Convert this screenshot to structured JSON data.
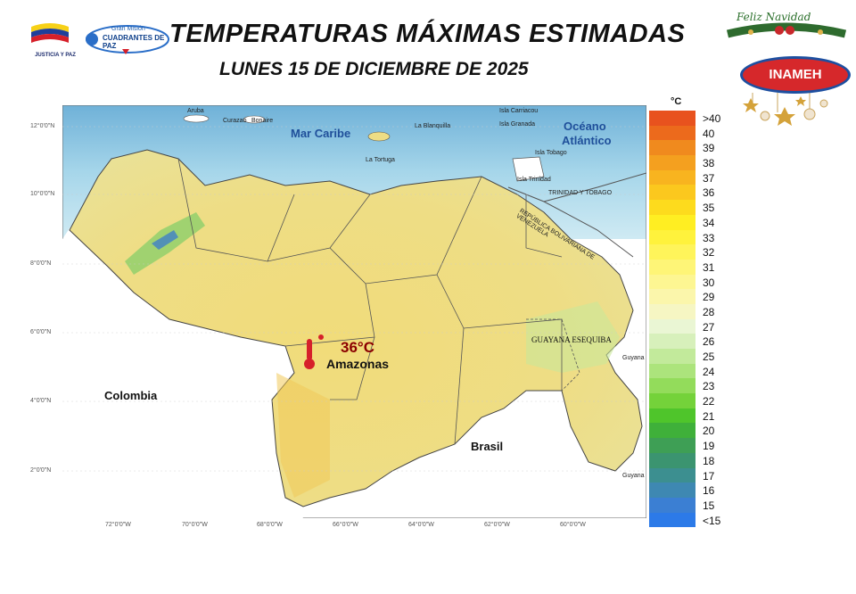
{
  "header": {
    "title": "TEMPERATURAS MÁXIMAS ESTIMADAS",
    "subtitle": "LUNES 15 DE DICIEMBRE DE 2025"
  },
  "logos": {
    "justicia_paz": "JUSTICIA Y PAZ",
    "gran_mision_line1": "Gran Misión",
    "gran_mision_line2": "CUADRANTES DE PAZ",
    "inameh": "INAMEH",
    "holiday": "Feliz Navidad"
  },
  "map": {
    "sea_labels": [
      "Mar Caribe",
      "Océano",
      "Atlántico"
    ],
    "country_labels": [
      "Colombia",
      "Brasil"
    ],
    "territory_label": "GUAYANA ESEQUIBA",
    "border_labels": [
      "TRINIDAD Y TOBAGO",
      "REPÚBLICA BOLIVARIANA DE VENEZUELA"
    ],
    "small_places": [
      "Aruba",
      "Curazao",
      "Bonaire",
      "Isla Carriacou",
      "Isla Granada",
      "Isla Tobago",
      "Isla Trinidad",
      "La Tortuga",
      "La Blanquilla",
      "Guyana",
      "Guyana"
    ],
    "highlight": {
      "temperature": "36°C",
      "state": "Amazonas"
    },
    "lat_ticks": [
      "12°0'0\"N",
      "10°0'0\"N",
      "8°0'0\"N",
      "6°0'0\"N",
      "4°0'0\"N",
      "2°0'0\"N"
    ],
    "lon_ticks": [
      "72°0'0\"W",
      "70°0'0\"W",
      "68°0'0\"W",
      "66°0'0\"W",
      "64°0'0\"W",
      "62°0'0\"W",
      "60°0'0\"W"
    ]
  },
  "legend": {
    "unit": "°C",
    "items": [
      {
        "label": ">40",
        "color": "#e8521e"
      },
      {
        "label": "40",
        "color": "#ec6a1c"
      },
      {
        "label": "39",
        "color": "#f08a1e"
      },
      {
        "label": "38",
        "color": "#f4a01f"
      },
      {
        "label": "37",
        "color": "#f8b41f"
      },
      {
        "label": "36",
        "color": "#fbc81e"
      },
      {
        "label": "35",
        "color": "#fddb1d"
      },
      {
        "label": "34",
        "color": "#ffee22"
      },
      {
        "label": "33",
        "color": "#fff23c"
      },
      {
        "label": "32",
        "color": "#fff45a"
      },
      {
        "label": "31",
        "color": "#fef577"
      },
      {
        "label": "30",
        "color": "#fdf692"
      },
      {
        "label": "29",
        "color": "#fbf6ab"
      },
      {
        "label": "28",
        "color": "#f6f6c3"
      },
      {
        "label": "27",
        "color": "#eaf6d4"
      },
      {
        "label": "26",
        "color": "#d7f0bb"
      },
      {
        "label": "25",
        "color": "#c2ea9b"
      },
      {
        "label": "24",
        "color": "#ace47c"
      },
      {
        "label": "23",
        "color": "#93dc5b"
      },
      {
        "label": "22",
        "color": "#74d23a"
      },
      {
        "label": "21",
        "color": "#4fc52b"
      },
      {
        "label": "20",
        "color": "#3fb03a"
      },
      {
        "label": "19",
        "color": "#3e9f55"
      },
      {
        "label": "18",
        "color": "#3b9470"
      },
      {
        "label": "17",
        "color": "#3c8f90"
      },
      {
        "label": "16",
        "color": "#3e88b2"
      },
      {
        "label": "15",
        "color": "#3b7fd3"
      },
      {
        "label": "<15",
        "color": "#2c7ae8"
      }
    ]
  }
}
